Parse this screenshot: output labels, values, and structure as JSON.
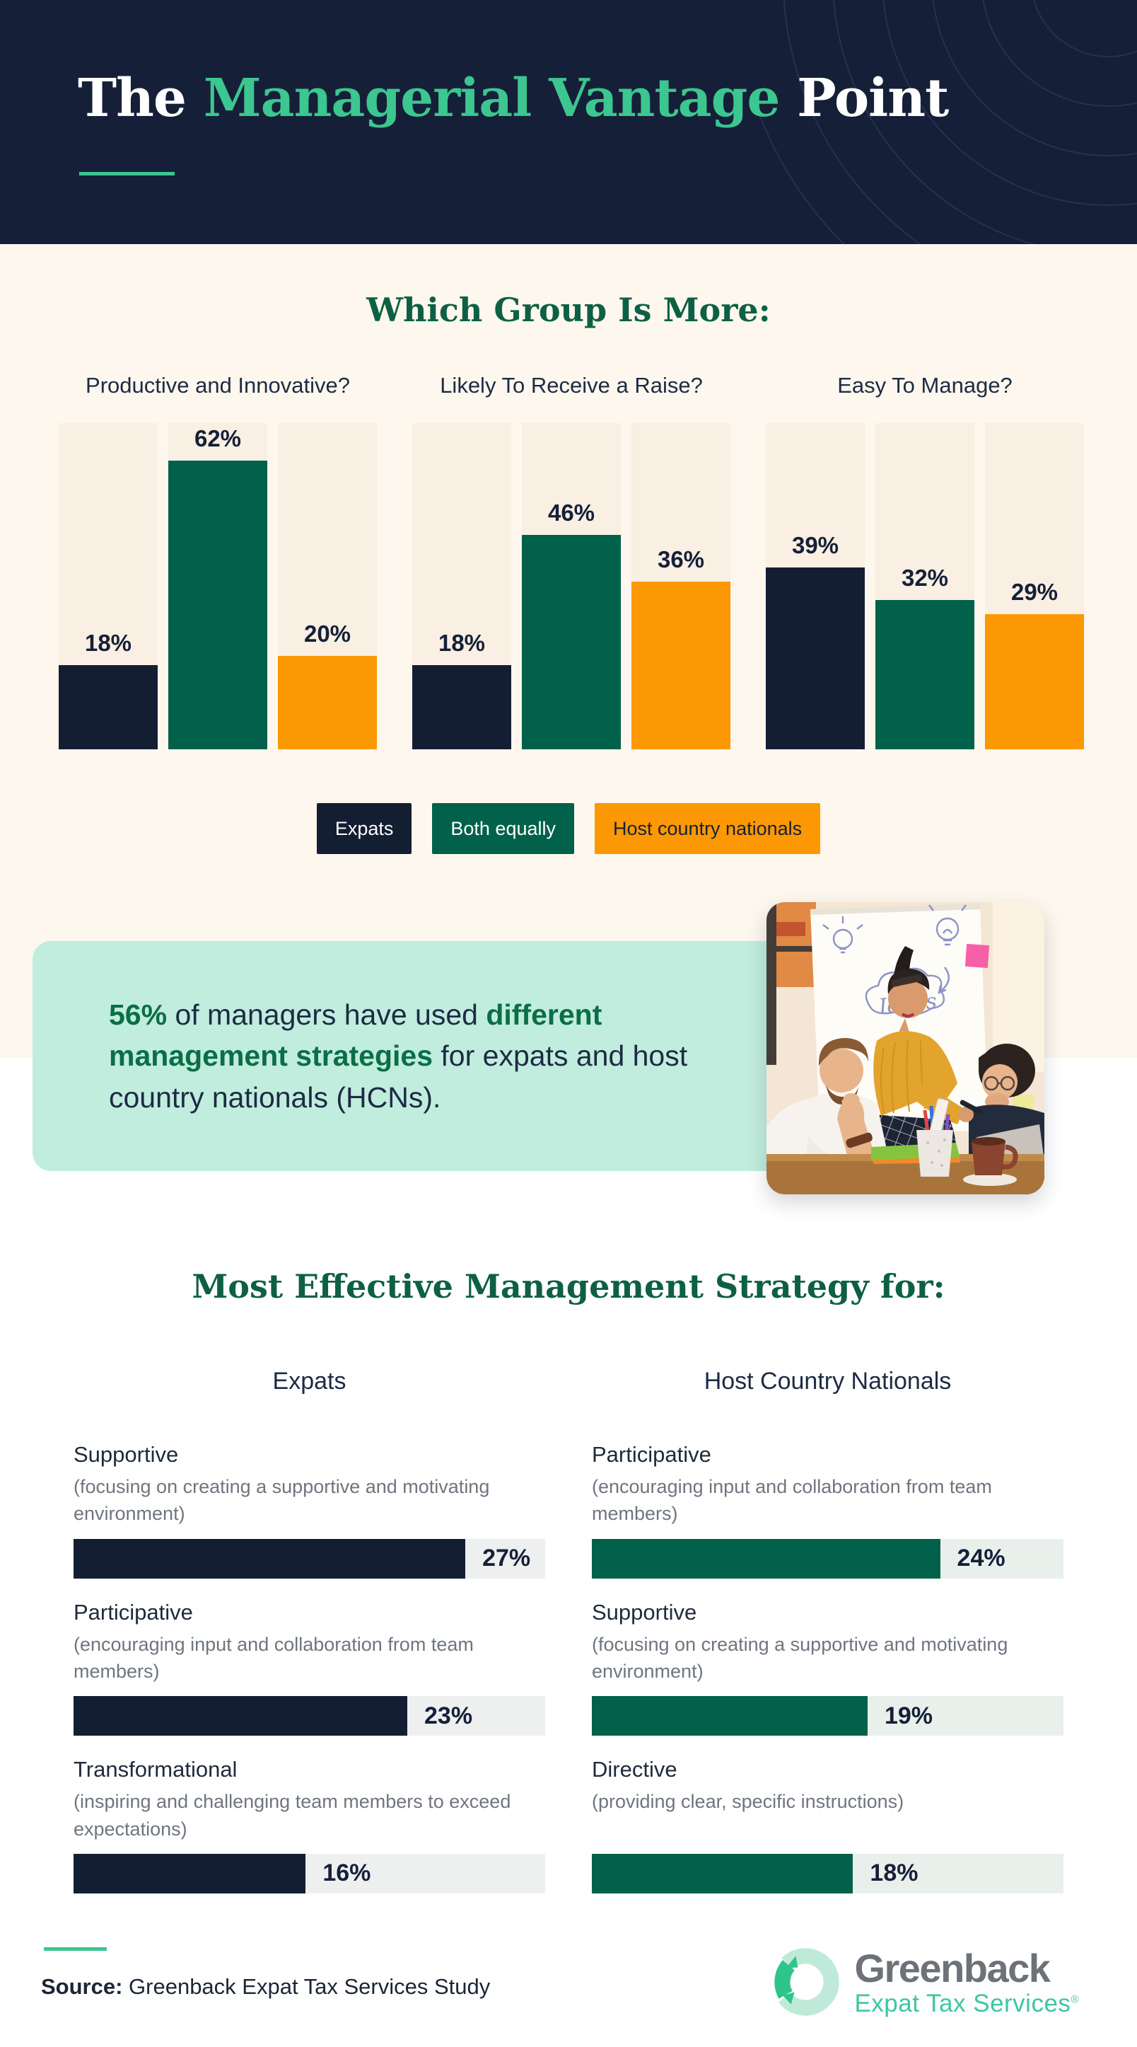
{
  "colors": {
    "header_bg": "#161f38",
    "accent_teal": "#3cc690",
    "heading_green": "#0d6044",
    "bar_navy": "#141e33",
    "bar_green": "#02614a",
    "bar_orange": "#fc9803",
    "callout_mint": "#c1edde",
    "cream_bg": "#fdf7ee"
  },
  "header": {
    "title_prefix": "The ",
    "title_highlight": "Managerial Vantage",
    "title_suffix": " Point"
  },
  "chart_data": [
    {
      "type": "bar",
      "title": "Which Group Is More:",
      "categories": [
        "Productive and Innovative?",
        "Likely To Receive a Raise?",
        "Easy To Manage?"
      ],
      "series": [
        {
          "name": "Expats",
          "color": "#141e33",
          "values": [
            18,
            18,
            39
          ]
        },
        {
          "name": "Both equally",
          "color": "#02614a",
          "values": [
            62,
            46,
            32
          ]
        },
        {
          "name": "Host country nationals",
          "color": "#fc9803",
          "values": [
            20,
            36,
            29
          ]
        }
      ],
      "value_suffix": "%",
      "ylim": [
        0,
        70
      ],
      "grid": false,
      "legend_position": "bottom"
    },
    {
      "type": "bar",
      "orientation": "horizontal",
      "title": "Most Effective Management Strategy for:",
      "xlim": [
        0,
        32.5
      ],
      "value_suffix": "%",
      "columns": [
        {
          "heading": "Expats",
          "bar_color": "#141e33",
          "track_color": "#eef0ef",
          "items": [
            {
              "label": "Supportive",
              "description": "(focusing on creating a supportive and motivating environment)",
              "value": 27
            },
            {
              "label": "Participative",
              "description": "(encouraging input and collaboration from team members)",
              "value": 23
            },
            {
              "label": "Transformational",
              "description": "(inspiring and challenging team members to exceed expectations)",
              "value": 16
            }
          ]
        },
        {
          "heading": "Host Country Nationals",
          "bar_color": "#02614a",
          "track_color": "#e9f0ec",
          "items": [
            {
              "label": "Participative",
              "description": "(encouraging input and collaboration from team members)",
              "value": 24
            },
            {
              "label": "Supportive",
              "description": "(focusing on creating a supportive and motivating environment)",
              "value": 19
            },
            {
              "label": "Directive",
              "description": "(providing clear, specific instructions)",
              "value": 18
            }
          ]
        }
      ]
    }
  ],
  "callout": {
    "part1": "56%",
    "part2": " of managers have used ",
    "part3": "different management strategies",
    "part4": " for expats and host country nationals (HCNs)."
  },
  "footer": {
    "source_label": "Source:",
    "source_text": " Greenback Expat Tax Services Study",
    "logo_name": "Greenback",
    "logo_subtitle": "Expat Tax Services",
    "logo_registered": "®"
  }
}
